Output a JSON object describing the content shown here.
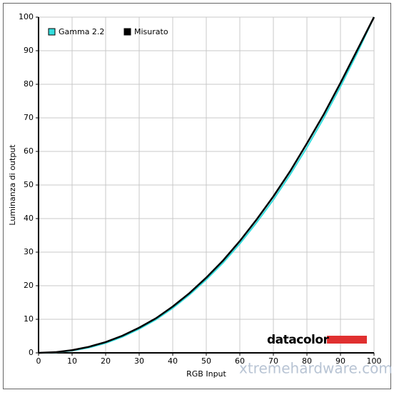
{
  "chart_data": {
    "type": "line",
    "x_label": "RGB Input",
    "y_label": "Luminanza di output",
    "x": [
      0,
      5,
      10,
      15,
      20,
      25,
      30,
      35,
      40,
      45,
      50,
      55,
      60,
      65,
      70,
      75,
      80,
      85,
      90,
      95,
      100
    ],
    "series": [
      {
        "name": "Gamma 2.2",
        "color": "#33dddd",
        "values": [
          0,
          0.14,
          0.63,
          1.55,
          2.9,
          4.75,
          7.1,
          9.9,
          13.3,
          17.3,
          21.8,
          26.8,
          32.5,
          38.8,
          45.6,
          53.1,
          61.2,
          69.9,
          79.3,
          89.3,
          100
        ]
      },
      {
        "name": "Misurato",
        "color": "#000000",
        "values": [
          0,
          0.2,
          0.8,
          1.8,
          3.2,
          5.1,
          7.5,
          10.3,
          13.8,
          17.8,
          22.4,
          27.5,
          33.3,
          39.7,
          46.6,
          54.1,
          62.4,
          71.0,
          80.4,
          90.2,
          100
        ]
      }
    ],
    "xlim": [
      0,
      100
    ],
    "ylim": [
      0,
      100
    ],
    "xticks": [
      0,
      10,
      20,
      30,
      40,
      50,
      60,
      70,
      80,
      90,
      100
    ],
    "yticks": [
      0,
      10,
      20,
      30,
      40,
      50,
      60,
      70,
      80,
      90,
      100
    ],
    "grid": true,
    "legend": "top-left",
    "annotations": [
      "datacolor",
      "xtremehardware.com"
    ]
  }
}
